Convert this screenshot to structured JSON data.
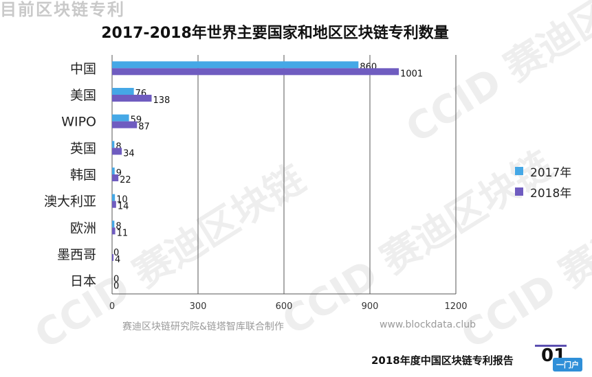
{
  "watermark": {
    "top_fragment": "⽬前区块链专利",
    "marks": [
      "CCID 赛迪区块链",
      "CCID 赛迪区块链",
      "CCID 赛迪区块链",
      "CCID 赛迪区块链"
    ]
  },
  "colors": {
    "s2017": "#45a8e6",
    "s2018": "#6f5cc0",
    "grid": "#555555"
  },
  "chart_data": {
    "type": "bar",
    "orientation": "horizontal",
    "title": "2017-2018年世界主要国家和地区区块链专利数量",
    "categories": [
      "中国",
      "美国",
      "WIPO",
      "英国",
      "韩国",
      "澳大利亚",
      "欧洲",
      "墨西哥",
      "日本"
    ],
    "series": [
      {
        "name": "2017年",
        "values": [
          860,
          76,
          59,
          8,
          9,
          10,
          8,
          0,
          0
        ]
      },
      {
        "name": "2018年",
        "values": [
          1001,
          138,
          87,
          34,
          22,
          14,
          11,
          4,
          0
        ]
      }
    ],
    "xlim": [
      0,
      1200
    ],
    "xticks": [
      0,
      300,
      600,
      900,
      1200
    ],
    "grid": "vertical",
    "legend": "right"
  },
  "footer": {
    "source": "赛迪区块链研究院&链塔智库联合制作",
    "site": "www.blockdata.club",
    "report": "2018年度中国区块链专利报告",
    "page": "01",
    "badge": "⼀门户"
  }
}
